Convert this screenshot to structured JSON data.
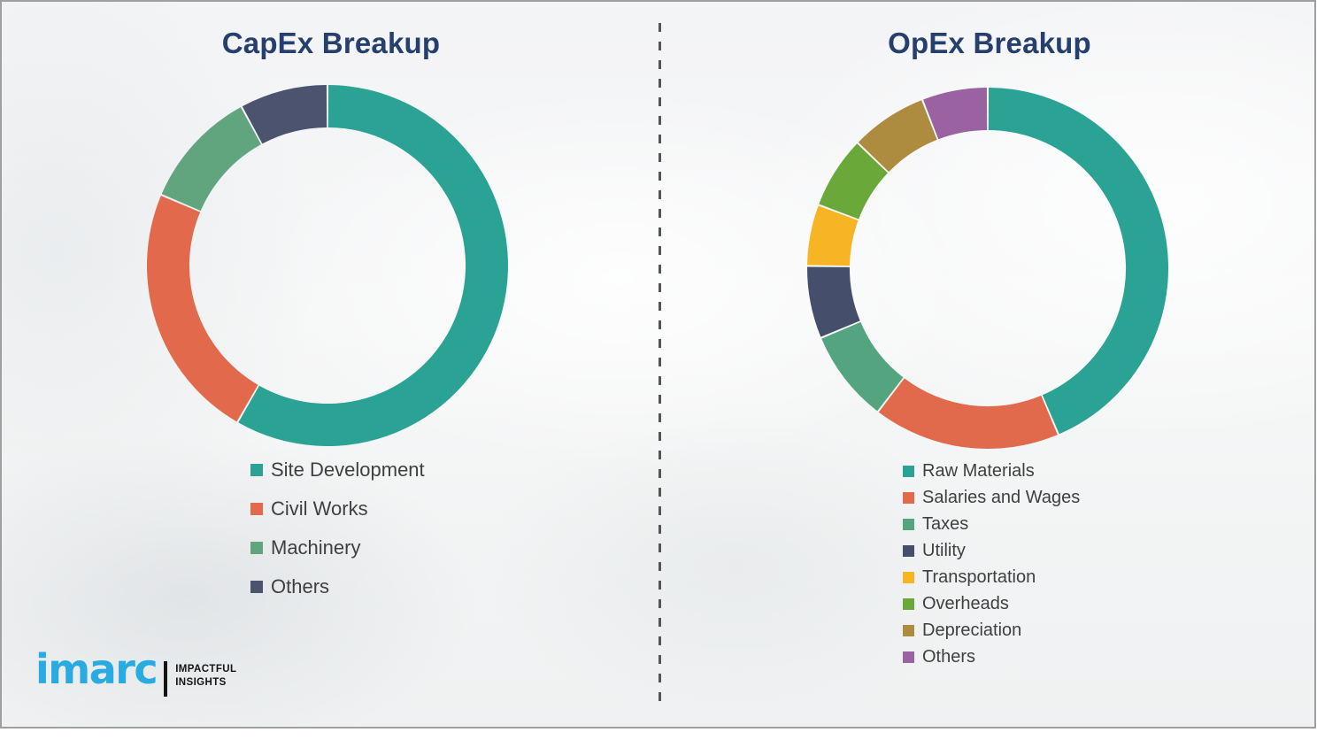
{
  "brand": {
    "title_color": "#26406e",
    "legend_text_color": "#3f3f3f",
    "logo": {
      "wordmark": "imarc",
      "tagline_line1": "IMPACTFUL",
      "tagline_line2": "INSIGHTS",
      "wordmark_color": "#29abe2",
      "tagline_color": "#141414"
    }
  },
  "chart_data": [
    {
      "type": "pie",
      "subtype": "donut",
      "title": "CapEx Breakup",
      "labels": [
        "Site Development",
        "Civil Works",
        "Machinery",
        "Others"
      ],
      "values": [
        58.3,
        23.1,
        10.7,
        7.9
      ],
      "colors": [
        "#2ba394",
        "#e2694b",
        "#61a57e",
        "#4c536f"
      ],
      "start_angle_deg": 0,
      "direction": "clockwise",
      "inner_radius_ratio": 0.765,
      "legend_position": "below-left",
      "data_labels": "none"
    },
    {
      "type": "pie",
      "subtype": "donut",
      "title": "OpEx Breakup",
      "labels": [
        "Raw Materials",
        "Salaries and Wages",
        "Taxes",
        "Utility",
        "Transportation",
        "Overheads",
        "Depreciation",
        "Others"
      ],
      "values": [
        43.6,
        16.8,
        8.3,
        6.5,
        5.5,
        6.5,
        6.9,
        5.9
      ],
      "colors": [
        "#2ba394",
        "#e06a4b",
        "#55a480",
        "#454e6b",
        "#f7b525",
        "#6aa839",
        "#ad8c3f",
        "#9b62a2"
      ],
      "start_angle_deg": 0,
      "direction": "clockwise",
      "inner_radius_ratio": 0.765,
      "legend_position": "below-left",
      "data_labels": "none"
    }
  ]
}
